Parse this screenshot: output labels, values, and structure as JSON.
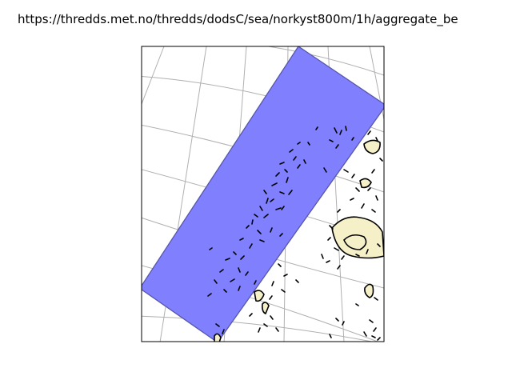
{
  "figure": {
    "title": "https://thredds.met.no/thredds/dodsC/sea/norkyst800m/1h/aggregate_be"
  },
  "colors": {
    "domain_fill": "#8080ff",
    "domain_edge": "#5555aa",
    "grid": "#b0b0b0",
    "land_fill": "#f5f0c8",
    "coast": "#000000",
    "background": "#ffffff"
  }
}
